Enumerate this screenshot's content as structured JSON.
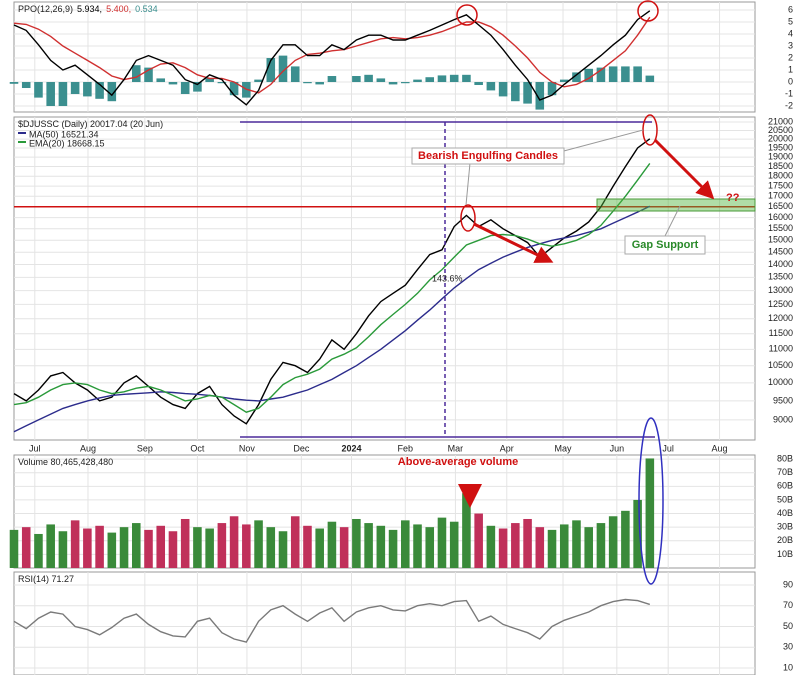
{
  "chart_data": [
    {
      "type": "line",
      "title": "PPO(12,26,9)",
      "legend_values": [
        "5.934,",
        "5.400,",
        "0.534"
      ],
      "x": [
        0,
        1,
        2,
        3,
        4,
        5,
        6,
        7,
        8,
        9,
        10,
        11,
        12,
        13,
        14,
        15,
        16,
        17,
        18,
        19,
        20,
        21,
        22,
        23,
        24,
        25,
        26,
        27,
        28,
        29,
        30,
        31,
        32,
        33,
        34,
        35,
        36,
        37,
        38,
        39,
        40,
        41,
        42,
        43,
        44,
        45,
        46,
        47,
        48,
        49,
        50,
        51,
        52
      ],
      "ylim": [
        -2.5,
        6.67
      ],
      "yticks": [
        -2,
        -1,
        0,
        1,
        2,
        3,
        4,
        5,
        6
      ],
      "grid": true,
      "series": [
        {
          "type": "bar",
          "color": "#3b8f8f",
          "values": [
            -0.15,
            -0.5,
            -1.3,
            -2.0,
            -2.0,
            -1.0,
            -1.2,
            -1.4,
            -1.6,
            0.0,
            1.4,
            1.2,
            0.3,
            -0.2,
            -1.0,
            -0.8,
            0.3,
            -0.1,
            -1.1,
            -1.3,
            0.2,
            2.0,
            2.2,
            1.3,
            -0.1,
            -0.2,
            0.5,
            0.0,
            0.5,
            0.6,
            0.3,
            -0.2,
            -0.1,
            0.2,
            0.4,
            0.55,
            0.6,
            0.6,
            -0.25,
            -0.7,
            -1.2,
            -1.6,
            -1.8,
            -2.3,
            -1.1,
            0.2,
            0.8,
            1.1,
            1.2,
            1.3,
            1.3,
            1.3,
            0.534
          ]
        },
        {
          "color": "#d03030",
          "values": [
            4.9,
            4.8,
            4.4,
            3.8,
            3.0,
            2.4,
            1.8,
            1.2,
            0.5,
            0.2,
            0.4,
            1.0,
            1.5,
            1.6,
            1.2,
            0.6,
            0.3,
            0.3,
            0,
            -0.6,
            -0.9,
            -0.2,
            0.9,
            1.8,
            2.3,
            2.4,
            2.6,
            2.7,
            3.0,
            3.3,
            3.6,
            3.7,
            3.6,
            3.7,
            3.9,
            4.2,
            4.6,
            5.0,
            5.0,
            4.6,
            3.9,
            3.0,
            2.0,
            0.8,
            0.0,
            -0.4,
            -0.2,
            0.3,
            1.0,
            1.8,
            2.6,
            3.9,
            5.4
          ]
        },
        {
          "color": "#000000",
          "values": [
            4.75,
            4.3,
            3.1,
            1.8,
            1.0,
            1.4,
            0.6,
            -0.2,
            -1.1,
            0.2,
            1.8,
            2.2,
            1.8,
            1.4,
            0.2,
            -0.2,
            0.6,
            0.2,
            -1.1,
            -1.9,
            -0.7,
            1.8,
            3.1,
            3.1,
            2.2,
            2.2,
            3.1,
            2.7,
            3.5,
            3.9,
            3.9,
            3.5,
            3.5,
            3.9,
            4.3,
            4.75,
            5.2,
            5.6,
            4.75,
            3.9,
            2.7,
            1.4,
            0.2,
            -1.5,
            -1.1,
            -0.2,
            0.6,
            1.4,
            2.2,
            3.1,
            3.9,
            5.2,
            5.934
          ]
        }
      ]
    },
    {
      "type": "line",
      "title": "$DJUSSC (Daily) 20017.04 (20 Jun)",
      "log": true,
      "x": [
        0,
        1,
        2,
        3,
        4,
        5,
        6,
        7,
        8,
        9,
        10,
        11,
        12,
        13,
        14,
        15,
        16,
        17,
        18,
        19,
        20,
        21,
        22,
        23,
        24,
        25,
        26,
        27,
        28,
        29,
        30,
        31,
        32,
        33,
        34,
        35,
        36,
        37,
        38,
        39,
        40,
        41,
        42,
        43,
        44,
        45,
        46,
        47,
        48,
        49,
        50,
        51,
        52
      ],
      "xlim": [
        0,
        60.6
      ],
      "xticks": [
        {
          "value": 1.7,
          "label": "Jul"
        },
        {
          "value": 6.05,
          "label": "Aug"
        },
        {
          "value": 10.7,
          "label": "Sep"
        },
        {
          "value": 15.0,
          "label": "Oct"
        },
        {
          "value": 19.05,
          "label": "Nov"
        },
        {
          "value": 23.5,
          "label": "Dec"
        },
        {
          "value": 27.6,
          "label": "2024"
        },
        {
          "value": 32.0,
          "label": "Feb"
        },
        {
          "value": 36.1,
          "label": "Mar"
        },
        {
          "value": 40.3,
          "label": "Apr"
        },
        {
          "value": 44.9,
          "label": "May"
        },
        {
          "value": 49.3,
          "label": "Jun"
        },
        {
          "value": 53.5,
          "label": "Jul"
        },
        {
          "value": 57.7,
          "label": "Aug"
        }
      ],
      "ylim": [
        8500,
        21300
      ],
      "yticks": [
        9000,
        9500,
        10000,
        10500,
        11000,
        11500,
        12000,
        12500,
        13000,
        13500,
        14000,
        14500,
        15000,
        15500,
        16000,
        16500,
        17000,
        17500,
        18000,
        18500,
        19000,
        19500,
        20000,
        20500,
        21000
      ],
      "grid": true,
      "support_level": 16500,
      "support_color": "#d01010",
      "annotations": [
        "Bearish Engulfing Candles",
        "Gap Support",
        "143.6%",
        "??"
      ],
      "series": [
        {
          "color": "#000000",
          "values": [
            9700,
            9500,
            9800,
            10200,
            10300,
            10000,
            9800,
            9500,
            9600,
            10000,
            10200,
            9900,
            9600,
            9400,
            9300,
            9700,
            9900,
            9400,
            9100,
            8900,
            9400,
            10100,
            10600,
            10500,
            10300,
            10700,
            11300,
            11000,
            11500,
            12100,
            12600,
            12900,
            13200,
            13800,
            14400,
            14600,
            15600,
            16100,
            15600,
            15900,
            15500,
            15200,
            14900,
            14300,
            14700,
            15100,
            15400,
            15800,
            16500,
            17500,
            18500,
            19500,
            20017.04
          ]
        },
        {
          "name": "MA(50) 16521.34",
          "color": "#2c2c8c",
          "values": [
            8700,
            8850,
            9000,
            9150,
            9300,
            9400,
            9500,
            9580,
            9650,
            9680,
            9700,
            9720,
            9750,
            9730,
            9700,
            9680,
            9650,
            9600,
            9550,
            9520,
            9500,
            9550,
            9600,
            9700,
            9800,
            9950,
            10100,
            10300,
            10500,
            10750,
            11000,
            11300,
            11600,
            11950,
            12300,
            12700,
            13100,
            13450,
            13800,
            14050,
            14300,
            14500,
            14700,
            14850,
            15000,
            15100,
            15200,
            15350,
            15500,
            15750,
            16000,
            16250,
            16521.34
          ]
        },
        {
          "name": "EMA(20) 18668.15",
          "color": "#2a9a3a",
          "values": [
            9400,
            9450,
            9600,
            9800,
            9950,
            10000,
            9950,
            9800,
            9700,
            9750,
            9850,
            9900,
            9800,
            9650,
            9500,
            9550,
            9650,
            9600,
            9400,
            9200,
            9300,
            9600,
            9950,
            10150,
            10250,
            10400,
            10700,
            10850,
            11050,
            11400,
            11800,
            12150,
            12500,
            12900,
            13400,
            13800,
            14300,
            14800,
            15000,
            15200,
            15250,
            15200,
            15050,
            14850,
            14750,
            14850,
            15000,
            15250,
            15650,
            16300,
            17000,
            17800,
            18668.15
          ]
        }
      ]
    },
    {
      "type": "bar",
      "title": "Volume 80,465,428,480",
      "annotation": "Above-average volume",
      "up_color": "#3a8a3a",
      "down_color": "#c0305a",
      "x": [
        0,
        1,
        2,
        3,
        4,
        5,
        6,
        7,
        8,
        9,
        10,
        11,
        12,
        13,
        14,
        15,
        16,
        17,
        18,
        19,
        20,
        21,
        22,
        23,
        24,
        25,
        26,
        27,
        28,
        29,
        30,
        31,
        32,
        33,
        34,
        35,
        36,
        37,
        38,
        39,
        40,
        41,
        42,
        43,
        44,
        45,
        46,
        47,
        48,
        49,
        50,
        51,
        52
      ],
      "ylim": [
        0,
        83
      ],
      "yticks": [
        {
          "value": 10,
          "label": "10B"
        },
        {
          "value": 20,
          "label": "20B"
        },
        {
          "value": 30,
          "label": "30B"
        },
        {
          "value": 40,
          "label": "40B"
        },
        {
          "value": 50,
          "label": "50B"
        },
        {
          "value": 60,
          "label": "60B"
        },
        {
          "value": 70,
          "label": "70B"
        },
        {
          "value": 80,
          "label": "80B"
        }
      ],
      "grid": true,
      "values": [
        28,
        30,
        25,
        32,
        27,
        35,
        29,
        31,
        26,
        30,
        33,
        28,
        31,
        27,
        36,
        30,
        29,
        33,
        38,
        32,
        35,
        30,
        27,
        38,
        31,
        29,
        34,
        30,
        36,
        33,
        31,
        28,
        35,
        32,
        30,
        37,
        34,
        55,
        40,
        31,
        29,
        33,
        36,
        30,
        28,
        32,
        35,
        30,
        33,
        38,
        42,
        50,
        80.46542848
      ]
    },
    {
      "type": "line",
      "title": "RSI(14) 71.27",
      "x": [
        0,
        1,
        2,
        3,
        4,
        5,
        6,
        7,
        8,
        9,
        10,
        11,
        12,
        13,
        14,
        15,
        16,
        17,
        18,
        19,
        20,
        21,
        22,
        23,
        24,
        25,
        26,
        27,
        28,
        29,
        30,
        31,
        32,
        33,
        34,
        35,
        36,
        37,
        38,
        39,
        40,
        41,
        42,
        43,
        44,
        45,
        46,
        47,
        48,
        49,
        50,
        51,
        52
      ],
      "ylim": [
        3.3,
        102.5
      ],
      "yticks": [
        10,
        30,
        50,
        70,
        90
      ],
      "grid": true,
      "series": [
        {
          "color": "#7a7a7a",
          "values": [
            55,
            48,
            58,
            64,
            62,
            50,
            47,
            42,
            49,
            58,
            62,
            52,
            45,
            41,
            40,
            55,
            58,
            44,
            38,
            35,
            55,
            66,
            70,
            62,
            55,
            63,
            68,
            55,
            64,
            68,
            70,
            66,
            65,
            70,
            72,
            70,
            74,
            75,
            55,
            60,
            52,
            48,
            44,
            38,
            50,
            56,
            60,
            64,
            70,
            74,
            76,
            75,
            71.27
          ]
        }
      ]
    }
  ]
}
